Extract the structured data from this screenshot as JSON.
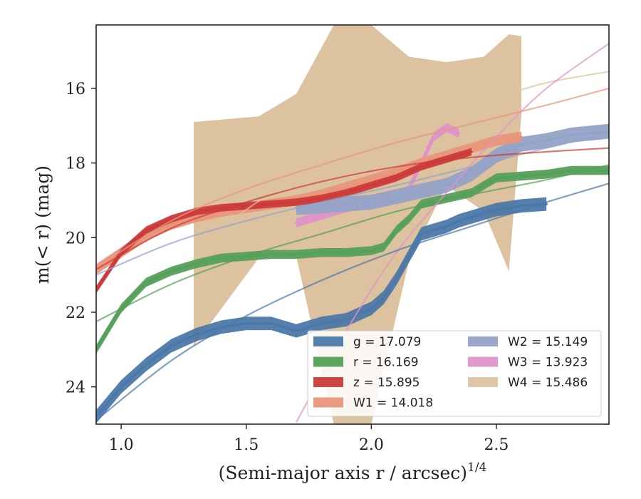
{
  "chart_data": {
    "type": "line",
    "xlabel": "(Semi-major axis r / arcsec)",
    "xlabel_sup": "1/4",
    "ylabel": "m(< r) (mag)",
    "xlim": [
      0.9,
      2.95
    ],
    "ylim": [
      25.0,
      14.3
    ],
    "y_inverted": true,
    "xticks": [
      1.0,
      1.5,
      2.0,
      2.5
    ],
    "xtick_labels": [
      "1.0",
      "1.5",
      "2.0",
      "2.5"
    ],
    "yticks": [
      16,
      18,
      20,
      22,
      24
    ],
    "ytick_labels": [
      "16",
      "18",
      "20",
      "22",
      "24"
    ],
    "grid": false,
    "legend": {
      "placement": "lower-right",
      "columns": 2,
      "entries": [
        {
          "label": "g = 17.079",
          "color": "#4c78a8"
        },
        {
          "label": "r = 16.169",
          "color": "#55a05a"
        },
        {
          "label": "z = 15.895",
          "color": "#cc3b3b"
        },
        {
          "label": "W1 = 14.018",
          "color": "#e8967a"
        },
        {
          "label": "W2 = 15.149",
          "color": "#94a2c8"
        },
        {
          "label": "W3 = 13.923",
          "color": "#de94c8"
        },
        {
          "label": "W4 = 15.486",
          "color": "#dcc29e"
        }
      ]
    },
    "series": [
      {
        "name": "g = 17.079",
        "color": "#4c78a8",
        "band_width": 0.18,
        "x": [
          0.9,
          1.0,
          1.1,
          1.2,
          1.3,
          1.4,
          1.5,
          1.6,
          1.7,
          1.8,
          1.9,
          2.0,
          2.05,
          2.1,
          2.15,
          2.2,
          2.25,
          2.3,
          2.35,
          2.4,
          2.5,
          2.6,
          2.7
        ],
        "y": [
          24.8,
          24.0,
          23.4,
          22.9,
          22.6,
          22.4,
          22.3,
          22.3,
          22.5,
          22.3,
          22.2,
          21.9,
          21.6,
          21.1,
          20.5,
          19.9,
          19.8,
          19.7,
          19.55,
          19.45,
          19.25,
          19.15,
          19.1
        ],
        "model_x": [
          0.9,
          1.2,
          1.5,
          1.8,
          2.1,
          2.4,
          2.7,
          2.95
        ],
        "model_y": [
          24.9,
          23.3,
          22.1,
          21.15,
          20.35,
          19.7,
          19.05,
          18.55
        ]
      },
      {
        "name": "r = 16.169",
        "color": "#55a05a",
        "band_width": 0.12,
        "x": [
          0.9,
          1.0,
          1.1,
          1.2,
          1.3,
          1.4,
          1.5,
          1.6,
          1.7,
          1.8,
          1.9,
          2.0,
          2.05,
          2.1,
          2.15,
          2.2,
          2.3,
          2.4,
          2.5,
          2.6,
          2.7,
          2.8,
          2.95
        ],
        "y": [
          23.0,
          21.9,
          21.2,
          20.9,
          20.7,
          20.55,
          20.5,
          20.45,
          20.45,
          20.4,
          20.4,
          20.35,
          20.25,
          19.8,
          19.5,
          19.1,
          18.95,
          18.8,
          18.4,
          18.35,
          18.3,
          18.2,
          18.2
        ],
        "model_x": [
          0.9,
          1.2,
          1.5,
          1.8,
          2.1,
          2.4,
          2.7,
          2.95
        ],
        "model_y": [
          22.25,
          21.25,
          20.5,
          19.9,
          19.3,
          18.85,
          18.45,
          18.05
        ]
      },
      {
        "name": "z = 15.895",
        "color": "#cc3b3b",
        "band_width": 0.1,
        "x": [
          0.9,
          1.0,
          1.1,
          1.2,
          1.3,
          1.4,
          1.5,
          1.6,
          1.7,
          1.8,
          1.9,
          2.0,
          2.1,
          2.2,
          2.3,
          2.4
        ],
        "y": [
          21.4,
          20.4,
          19.8,
          19.5,
          19.3,
          19.2,
          19.15,
          19.1,
          19.05,
          18.95,
          18.8,
          18.6,
          18.4,
          18.1,
          17.9,
          17.7
        ],
        "model_x": [
          0.9,
          1.2,
          1.5,
          1.8,
          2.1,
          2.4,
          2.7,
          2.95
        ],
        "model_y": [
          20.85,
          19.75,
          19.05,
          18.5,
          18.1,
          17.85,
          17.7,
          17.6
        ]
      },
      {
        "name": "W1 = 14.018",
        "color": "#e8967a",
        "band_width": 0.14,
        "x": [
          0.9,
          1.0,
          1.1,
          1.2,
          1.3,
          1.4,
          1.5,
          1.6,
          1.7,
          1.8,
          1.9,
          2.0,
          2.1,
          2.2,
          2.3,
          2.4,
          2.5,
          2.6
        ],
        "y": [
          20.85,
          20.4,
          19.95,
          19.65,
          19.45,
          19.3,
          19.2,
          19.1,
          19.0,
          18.85,
          18.65,
          18.45,
          18.25,
          18.0,
          17.8,
          17.6,
          17.4,
          17.3
        ],
        "model_x": [
          0.9,
          1.2,
          1.5,
          1.8,
          2.1,
          2.4,
          2.7,
          2.95
        ],
        "model_y": [
          20.8,
          19.55,
          18.7,
          18.05,
          17.45,
          16.95,
          16.45,
          16.0
        ]
      },
      {
        "name": "W2 = 15.149",
        "color": "#94a2c8",
        "band_width": 0.2,
        "x": [
          1.7,
          1.8,
          1.9,
          2.0,
          2.1,
          2.2,
          2.3,
          2.4,
          2.5,
          2.6,
          2.7,
          2.8,
          2.95
        ],
        "y": [
          19.2,
          19.15,
          19.1,
          19.05,
          18.9,
          18.75,
          18.6,
          18.3,
          17.8,
          17.5,
          17.4,
          17.25,
          17.15
        ],
        "model_x": [
          0.9,
          1.2,
          1.5,
          1.8,
          2.1,
          2.4,
          2.7,
          2.95
        ],
        "model_y": [
          21.0,
          20.15,
          19.55,
          19.05,
          18.6,
          18.1,
          17.6,
          17.2
        ]
      },
      {
        "name": "W3 = 13.923",
        "color": "#de94c8",
        "band_width": 0.12,
        "x": [
          1.7,
          1.8,
          1.9,
          2.0,
          2.1,
          2.15,
          2.2,
          2.25,
          2.3,
          2.35
        ],
        "y": [
          19.6,
          19.4,
          19.2,
          19.05,
          18.95,
          18.7,
          18.0,
          17.3,
          17.05,
          17.2
        ],
        "model_x": [
          1.7,
          1.9,
          2.1,
          2.3,
          2.5,
          2.7,
          2.95
        ],
        "model_y": [
          24.95,
          22.5,
          20.4,
          18.8,
          17.3,
          16.0,
          14.8
        ]
      },
      {
        "name": "W4 = 15.486",
        "color": "#dcc29e",
        "band_width": 0,
        "x": [
          1.29,
          1.55,
          1.7,
          1.85,
          2.0,
          2.15,
          2.3,
          2.45,
          2.55,
          2.6
        ],
        "y": [
          20.3,
          19.4,
          18.4,
          17.8,
          17.2,
          16.7,
          17.6,
          16.3,
          17.4,
          17.3
        ],
        "band_upper": [
          16.9,
          16.75,
          16.15,
          14.3,
          14.3,
          15.15,
          15.3,
          15.15,
          14.55,
          14.6
        ],
        "band_lower": [
          22.9,
          20.55,
          20.5,
          25.0,
          25.0,
          20.65,
          18.6,
          19.3,
          20.9,
          16.7
        ],
        "model_x": [
          1.3,
          1.5,
          1.7,
          1.9,
          2.1,
          2.3,
          2.5,
          2.7,
          2.95
        ],
        "model_y": [
          20.4,
          19.25,
          18.45,
          17.8,
          17.2,
          16.7,
          16.25,
          15.85,
          15.55
        ]
      }
    ]
  }
}
